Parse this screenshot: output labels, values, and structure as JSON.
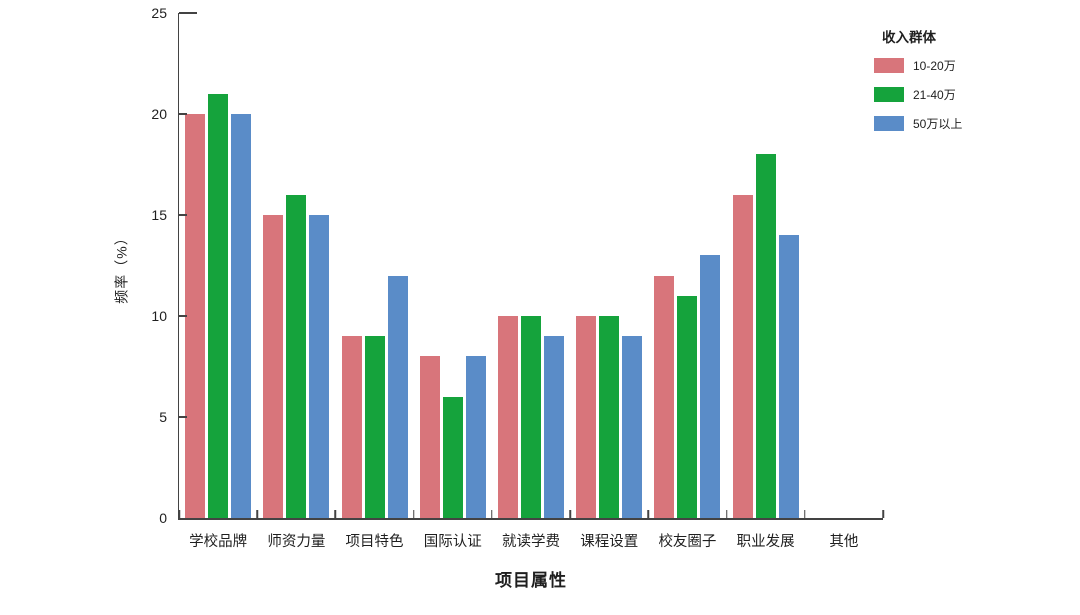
{
  "chart_data": {
    "type": "bar",
    "title": "",
    "xlabel": "项目属性",
    "ylabel": "频率（%）",
    "ylim": [
      0,
      25
    ],
    "yticks": [
      0,
      5,
      10,
      15,
      20,
      25
    ],
    "grid": false,
    "legend": {
      "title": "收入群体",
      "position": "top-right"
    },
    "categories": [
      "学校品牌",
      "师资力量",
      "项目特色",
      "国际认证",
      "就读学费",
      "课程设置",
      "校友圈子",
      "职业发展",
      "其他"
    ],
    "series": [
      {
        "name": "10-20万",
        "color": "#D8757B",
        "values": [
          20,
          15,
          9,
          8,
          10,
          10,
          12,
          16,
          0
        ]
      },
      {
        "name": "21-40万",
        "color": "#15A33C",
        "values": [
          21,
          16,
          9,
          6,
          10,
          10,
          11,
          18,
          0
        ]
      },
      {
        "name": "50万以上",
        "color": "#5A8CC8",
        "values": [
          20,
          15,
          12,
          8,
          9,
          9,
          13,
          14,
          0
        ]
      }
    ]
  }
}
